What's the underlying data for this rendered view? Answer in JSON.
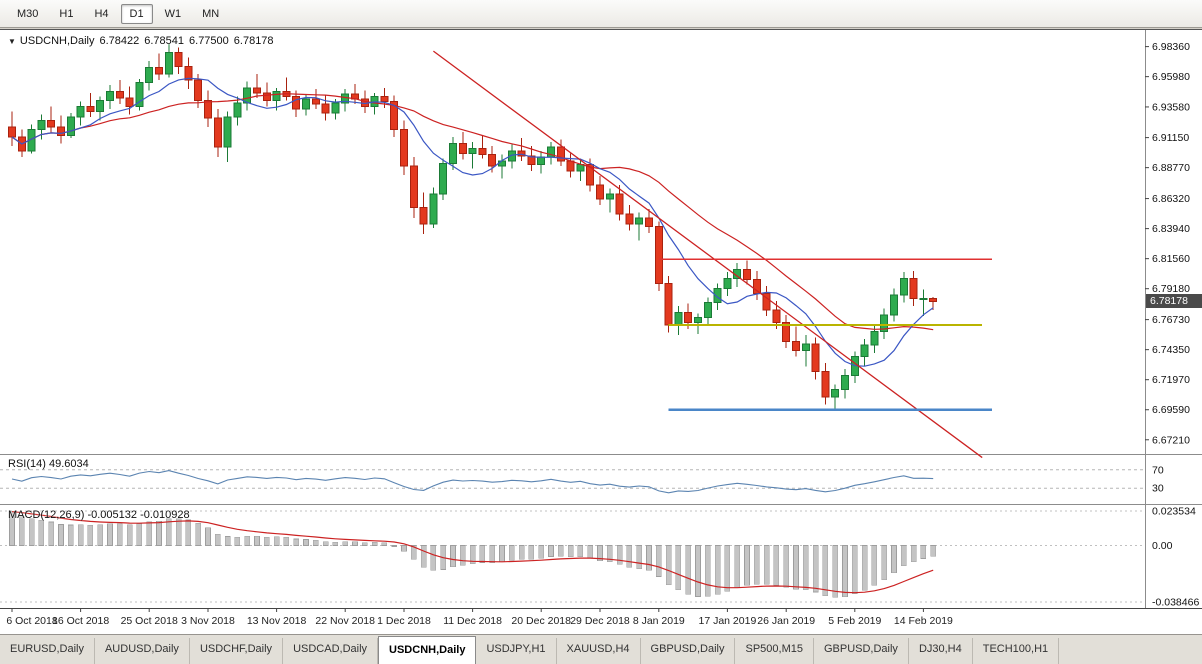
{
  "toolbar": {
    "timeframes": [
      {
        "label": "M30",
        "active": false
      },
      {
        "label": "H1",
        "active": false
      },
      {
        "label": "H4",
        "active": false
      },
      {
        "label": "D1",
        "active": true
      },
      {
        "label": "W1",
        "active": false
      },
      {
        "label": "MN",
        "active": false
      }
    ]
  },
  "chart_header": {
    "dropdown_icon": "▼",
    "symbol": "USDCNH,Daily",
    "open": "6.78422",
    "high": "6.78541",
    "low": "6.77500",
    "close": "6.78178"
  },
  "price_axis": {
    "labels": [
      "6.98360",
      "6.95980",
      "6.93580",
      "6.91150",
      "6.88770",
      "6.86320",
      "6.83940",
      "6.81560",
      "6.79180",
      "6.76730",
      "6.74350",
      "6.71970",
      "6.69590",
      "6.67210"
    ],
    "current_price": "6.78178",
    "current_price_value": 6.78178
  },
  "rsi": {
    "label": "RSI(14) 49.6034",
    "levels": [
      "70",
      "30"
    ],
    "level_values": [
      70,
      30
    ]
  },
  "macd": {
    "label": "MACD(12,26,9) -0.005132 -0.010928",
    "axis_labels": [
      {
        "text": "0.023534",
        "value": 0.023534
      },
      {
        "text": "0.00",
        "value": 0.0
      },
      {
        "text": "-0.038466",
        "value": -0.038466
      }
    ]
  },
  "date_axis": [
    {
      "label": "6 Oct 2018",
      "index": 0
    },
    {
      "label": "16 Oct 2018",
      "index": 7
    },
    {
      "label": "25 Oct 2018",
      "index": 14
    },
    {
      "label": "3 Nov 2018",
      "index": 20
    },
    {
      "label": "13 Nov 2018",
      "index": 27
    },
    {
      "label": "22 Nov 2018",
      "index": 34
    },
    {
      "label": "1 Dec 2018",
      "index": 40
    },
    {
      "label": "11 Dec 2018",
      "index": 47
    },
    {
      "label": "20 Dec 2018",
      "index": 54
    },
    {
      "label": "29 Dec 2018",
      "index": 60
    },
    {
      "label": "8 Jan 2019",
      "index": 66
    },
    {
      "label": "17 Jan 2019",
      "index": 73
    },
    {
      "label": "26 Jan 2019",
      "index": 79
    },
    {
      "label": "5 Feb 2019",
      "index": 86
    },
    {
      "label": "14 Feb 2019",
      "index": 93
    }
  ],
  "tabs": [
    {
      "label": "EURUSD,Daily",
      "active": false
    },
    {
      "label": "AUDUSD,Daily",
      "active": false
    },
    {
      "label": "USDCHF,Daily",
      "active": false
    },
    {
      "label": "USDCAD,Daily",
      "active": false
    },
    {
      "label": "USDCNH,Daily",
      "active": true
    },
    {
      "label": "USDJPY,H1",
      "active": false
    },
    {
      "label": "XAUUSD,H4",
      "active": false
    },
    {
      "label": "GBPUSD,Daily",
      "active": false
    },
    {
      "label": "SP500,M15",
      "active": false
    },
    {
      "label": "GBPUSD,Daily",
      "active": false
    },
    {
      "label": "DJ30,H4",
      "active": false
    },
    {
      "label": "TECH100,H1",
      "active": false
    }
  ],
  "chart_data": {
    "type": "candlestick",
    "symbol": "USDCNH",
    "timeframe": "Daily",
    "title": "USDCNH,Daily",
    "price_range": [
      6.664,
      6.992
    ],
    "grid": false,
    "ohlc": [
      [
        6.92,
        6.932,
        6.905,
        6.912
      ],
      [
        6.912,
        6.918,
        6.896,
        6.901
      ],
      [
        6.901,
        6.922,
        6.899,
        6.918
      ],
      [
        6.918,
        6.93,
        6.91,
        6.925
      ],
      [
        6.925,
        6.936,
        6.915,
        6.92
      ],
      [
        6.92,
        6.929,
        6.907,
        6.913
      ],
      [
        6.913,
        6.931,
        6.911,
        6.928
      ],
      [
        6.928,
        6.94,
        6.921,
        6.936
      ],
      [
        6.936,
        6.947,
        6.928,
        6.932
      ],
      [
        6.932,
        6.944,
        6.925,
        6.941
      ],
      [
        6.941,
        6.953,
        6.934,
        6.948
      ],
      [
        6.948,
        6.957,
        6.938,
        6.943
      ],
      [
        6.943,
        6.952,
        6.93,
        6.936
      ],
      [
        6.936,
        6.958,
        6.933,
        6.955
      ],
      [
        6.955,
        6.972,
        6.949,
        6.967
      ],
      [
        6.967,
        6.978,
        6.957,
        6.962
      ],
      [
        6.962,
        6.986,
        6.959,
        6.979
      ],
      [
        6.979,
        6.983,
        6.962,
        6.968
      ],
      [
        6.968,
        6.975,
        6.95,
        6.957
      ],
      [
        6.957,
        6.962,
        6.935,
        6.941
      ],
      [
        6.941,
        6.949,
        6.92,
        6.927
      ],
      [
        6.927,
        6.934,
        6.896,
        6.904
      ],
      [
        6.904,
        6.932,
        6.892,
        6.928
      ],
      [
        6.928,
        6.944,
        6.921,
        6.939
      ],
      [
        6.939,
        6.956,
        6.933,
        6.951
      ],
      [
        6.951,
        6.962,
        6.943,
        6.947
      ],
      [
        6.947,
        6.955,
        6.936,
        6.941
      ],
      [
        6.941,
        6.951,
        6.933,
        6.948
      ],
      [
        6.948,
        6.959,
        6.941,
        6.944
      ],
      [
        6.944,
        6.949,
        6.928,
        6.934
      ],
      [
        6.934,
        6.946,
        6.929,
        6.942
      ],
      [
        6.942,
        6.95,
        6.934,
        6.938
      ],
      [
        6.938,
        6.945,
        6.925,
        6.931
      ],
      [
        6.931,
        6.942,
        6.926,
        6.939
      ],
      [
        6.939,
        6.95,
        6.932,
        6.946
      ],
      [
        6.946,
        6.954,
        6.938,
        6.942
      ],
      [
        6.942,
        6.949,
        6.931,
        6.936
      ],
      [
        6.936,
        6.947,
        6.93,
        6.944
      ],
      [
        6.944,
        6.951,
        6.935,
        6.94
      ],
      [
        6.94,
        6.945,
        6.912,
        6.918
      ],
      [
        6.918,
        6.925,
        6.882,
        6.889
      ],
      [
        6.889,
        6.896,
        6.848,
        6.856
      ],
      [
        6.856,
        6.868,
        6.835,
        6.843
      ],
      [
        6.843,
        6.872,
        6.84,
        6.867
      ],
      [
        6.867,
        6.895,
        6.862,
        6.891
      ],
      [
        6.891,
        6.912,
        6.886,
        6.907
      ],
      [
        6.907,
        6.916,
        6.894,
        6.899
      ],
      [
        6.899,
        6.908,
        6.887,
        6.903
      ],
      [
        6.903,
        6.913,
        6.895,
        6.898
      ],
      [
        6.898,
        6.905,
        6.884,
        6.889
      ],
      [
        6.889,
        6.898,
        6.879,
        6.893
      ],
      [
        6.893,
        6.906,
        6.887,
        6.901
      ],
      [
        6.901,
        6.911,
        6.893,
        6.897
      ],
      [
        6.897,
        6.905,
        6.885,
        6.89
      ],
      [
        6.89,
        6.901,
        6.883,
        6.896
      ],
      [
        6.896,
        6.908,
        6.89,
        6.904
      ],
      [
        6.904,
        6.91,
        6.889,
        6.893
      ],
      [
        6.893,
        6.899,
        6.88,
        6.885
      ],
      [
        6.885,
        6.895,
        6.877,
        6.89
      ],
      [
        6.89,
        6.895,
        6.869,
        6.874
      ],
      [
        6.874,
        6.881,
        6.858,
        6.863
      ],
      [
        6.863,
        6.871,
        6.852,
        6.867
      ],
      [
        6.867,
        6.874,
        6.846,
        6.851
      ],
      [
        6.851,
        6.858,
        6.838,
        6.843
      ],
      [
        6.843,
        6.852,
        6.83,
        6.848
      ],
      [
        6.848,
        6.855,
        6.836,
        6.841
      ],
      [
        6.841,
        6.845,
        6.79,
        6.796
      ],
      [
        6.796,
        6.802,
        6.757,
        6.763
      ],
      [
        6.763,
        6.778,
        6.755,
        6.773
      ],
      [
        6.773,
        6.78,
        6.76,
        6.765
      ],
      [
        6.765,
        6.772,
        6.756,
        6.769
      ],
      [
        6.769,
        6.785,
        6.763,
        6.781
      ],
      [
        6.781,
        6.796,
        6.775,
        6.792
      ],
      [
        6.792,
        6.805,
        6.786,
        6.8
      ],
      [
        6.8,
        6.812,
        6.793,
        6.807
      ],
      [
        6.807,
        6.814,
        6.795,
        6.799
      ],
      [
        6.799,
        6.806,
        6.783,
        6.788
      ],
      [
        6.788,
        6.794,
        6.77,
        6.775
      ],
      [
        6.775,
        6.782,
        6.76,
        6.765
      ],
      [
        6.765,
        6.771,
        6.745,
        6.75
      ],
      [
        6.75,
        6.762,
        6.738,
        6.743
      ],
      [
        6.743,
        6.755,
        6.73,
        6.748
      ],
      [
        6.748,
        6.753,
        6.72,
        6.726
      ],
      [
        6.726,
        6.733,
        6.7,
        6.706
      ],
      [
        6.706,
        6.716,
        6.696,
        6.712
      ],
      [
        6.712,
        6.728,
        6.705,
        6.723
      ],
      [
        6.723,
        6.742,
        6.717,
        6.738
      ],
      [
        6.738,
        6.752,
        6.73,
        6.747
      ],
      [
        6.747,
        6.763,
        6.741,
        6.758
      ],
      [
        6.758,
        6.776,
        6.752,
        6.771
      ],
      [
        6.771,
        6.792,
        6.766,
        6.787
      ],
      [
        6.787,
        6.805,
        6.781,
        6.8
      ],
      [
        6.8,
        6.806,
        6.778,
        6.784
      ],
      [
        6.784,
        6.791,
        6.77,
        6.78422
      ],
      [
        6.78422,
        6.78541,
        6.775,
        6.78178
      ]
    ],
    "overlays": {
      "ma_fast": {
        "period": 8,
        "color": "#3b57c4"
      },
      "ma_slow": {
        "period": 20,
        "color": "#cc2222"
      },
      "trendline": {
        "from_index": 43,
        "from_price": 6.98,
        "to_index": 99,
        "to_price": 6.658,
        "color": "#cc2222"
      },
      "hlines": [
        {
          "price": 6.815,
          "from_index": 66,
          "to_index": 100,
          "color": "#e03131",
          "width": 1.5
        },
        {
          "price": 6.763,
          "from_index": 67,
          "to_index": 99,
          "color": "#b9b400",
          "width": 2
        },
        {
          "price": 6.696,
          "from_index": 67,
          "to_index": 100,
          "color": "#4a86c8",
          "width": 2.5
        }
      ]
    },
    "indicators": {
      "rsi_period": 14,
      "macd": [
        12,
        26,
        9
      ]
    },
    "colors": {
      "up": "#2eab4f",
      "up_border": "#1b7a36",
      "down": "#e3391f",
      "down_border": "#a8220f",
      "rsi_line": "#5b84b1",
      "macd_hist": "#c4c4c4",
      "macd_hist_border": "#9e9e9e",
      "macd_signal": "#cc2222"
    }
  }
}
